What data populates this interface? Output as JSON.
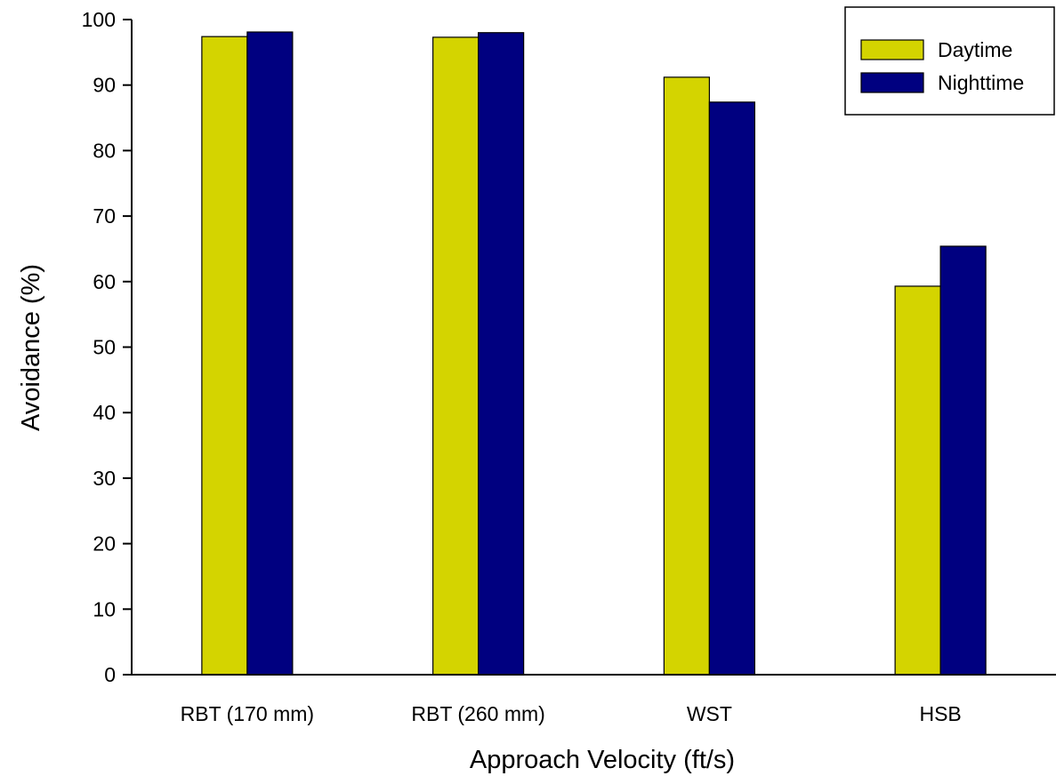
{
  "chart_data": {
    "type": "bar",
    "title": "",
    "xlabel": "Approach Velocity (ft/s)",
    "ylabel": "Avoidance (%)",
    "categories": [
      "RBT (170 mm)",
      "RBT (260 mm)",
      "WST",
      "HSB"
    ],
    "series": [
      {
        "name": "Daytime",
        "color": "#d4d400",
        "values": [
          97.4,
          97.3,
          91.2,
          59.3
        ]
      },
      {
        "name": "Nighttime",
        "color": "#000080",
        "values": [
          98.1,
          98.0,
          87.4,
          65.4
        ]
      }
    ],
    "ylim": [
      0,
      100
    ],
    "yticks": [
      0,
      10,
      20,
      30,
      40,
      50,
      60,
      70,
      80,
      90,
      100
    ],
    "grid": false,
    "legend_position": "top-right"
  }
}
